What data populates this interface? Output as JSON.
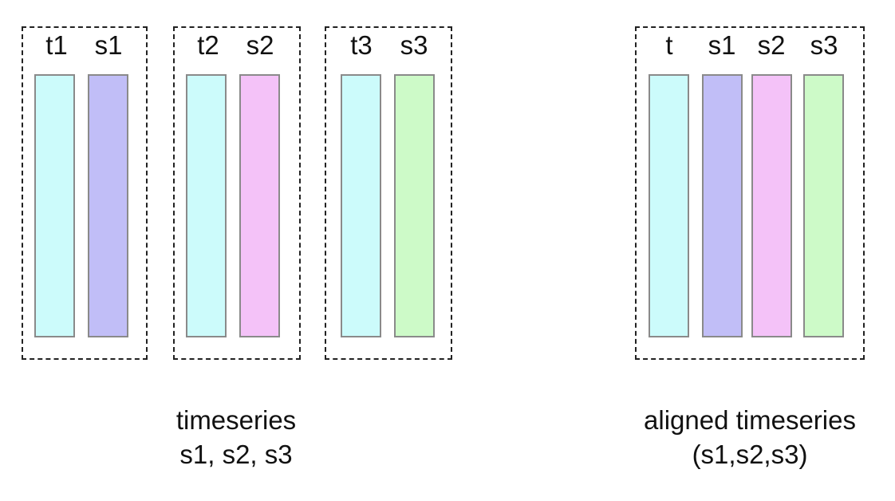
{
  "colors": {
    "time": "#ccfbfb",
    "s1": "#c1bef7",
    "s2": "#f4c2f8",
    "s3": "#cdfac8",
    "border": "#8a8a8a"
  },
  "groups": [
    {
      "columns": [
        {
          "label": "t1",
          "kind": "time"
        },
        {
          "label": "s1",
          "kind": "s1"
        }
      ]
    },
    {
      "columns": [
        {
          "label": "t2",
          "kind": "time"
        },
        {
          "label": "s2",
          "kind": "s2"
        }
      ]
    },
    {
      "columns": [
        {
          "label": "t3",
          "kind": "time"
        },
        {
          "label": "s3",
          "kind": "s3"
        }
      ]
    },
    {
      "columns": [
        {
          "label": "t",
          "kind": "time"
        },
        {
          "label": "s1",
          "kind": "s1"
        },
        {
          "label": "s2",
          "kind": "s2"
        },
        {
          "label": "s3",
          "kind": "s3"
        }
      ]
    }
  ],
  "captions": {
    "left_line1": "timeseries",
    "left_line2": "s1, s2, s3",
    "right_line1": "aligned timeseries",
    "right_line2": "(s1,s2,s3)"
  }
}
